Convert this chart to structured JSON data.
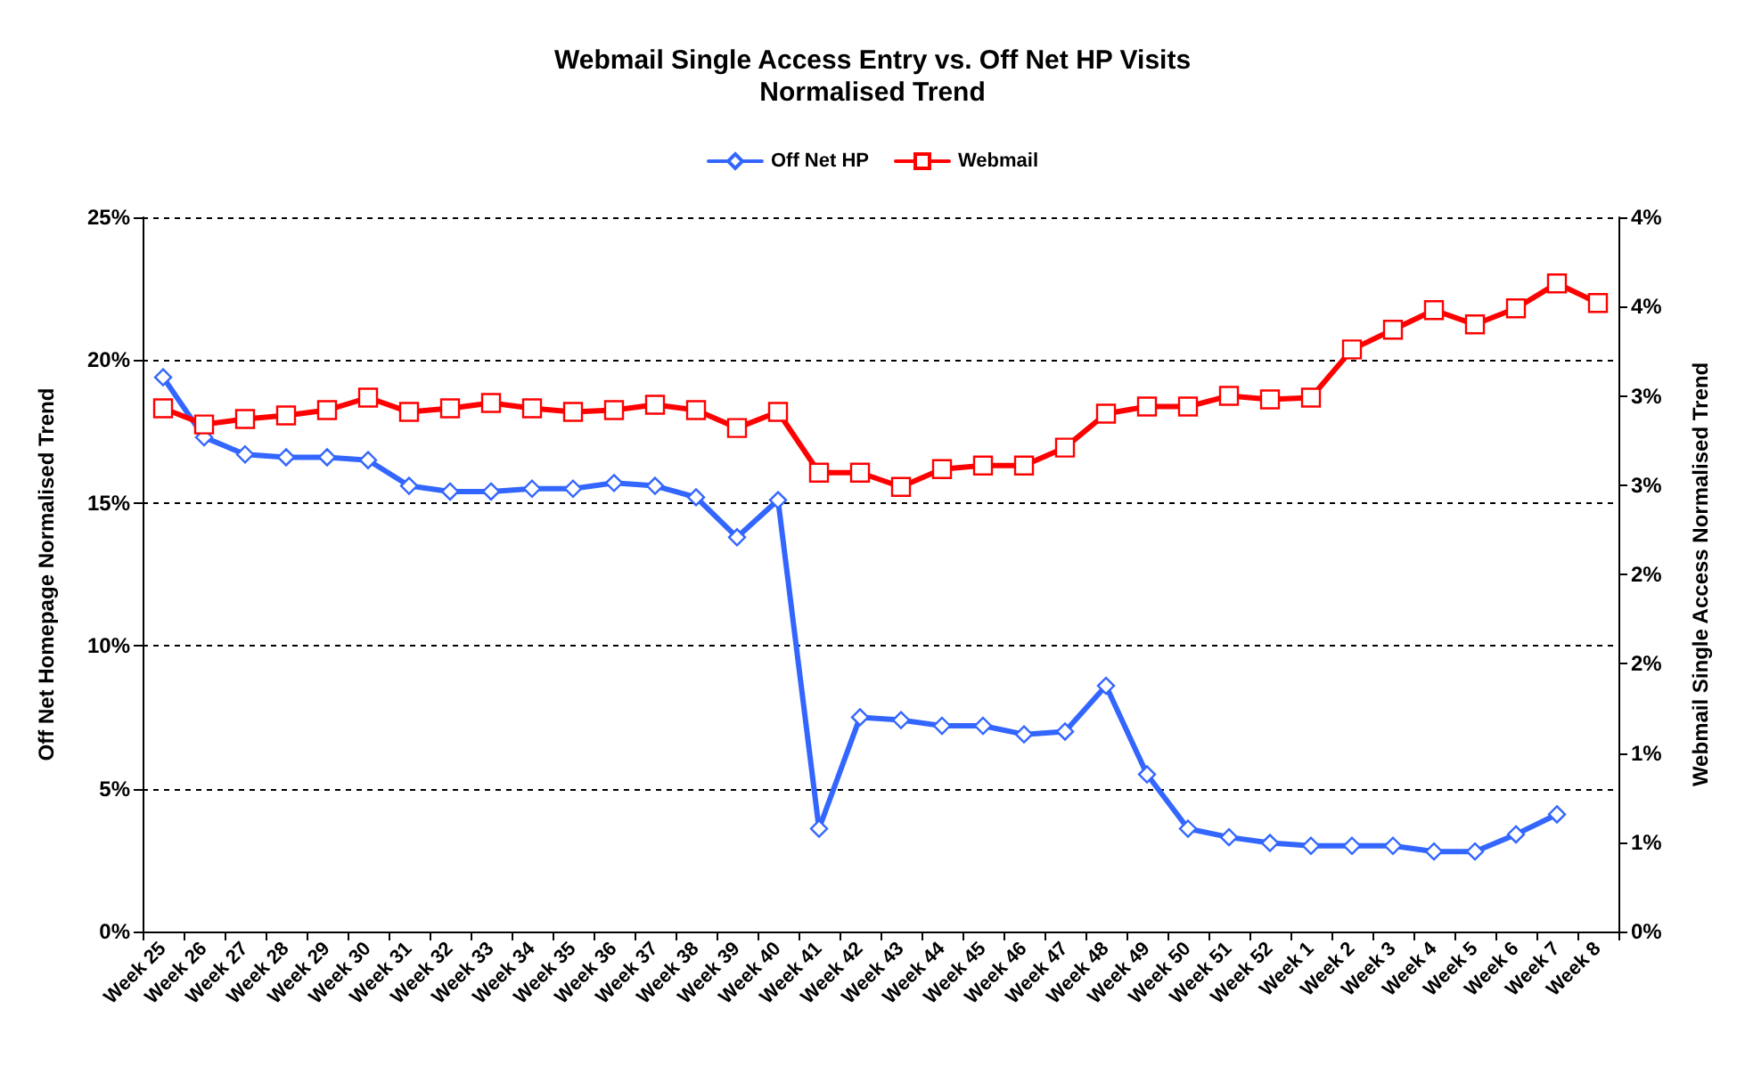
{
  "chart_data": {
    "type": "line",
    "title": "Webmail Single Access Entry vs. Off Net HP Visits\nNormalised Trend",
    "ylabel": "Off Net Homepage Normalised Trend",
    "y2label": "Webmail Single Access Normalised Trend",
    "categories": [
      "Week 25",
      "Week 26",
      "Week 27",
      "Week 28",
      "Week 29",
      "Week 30",
      "Week 31",
      "Week 32",
      "Week 33",
      "Week 34",
      "Week 35",
      "Week 36",
      "Week 37",
      "Week 38",
      "Week 39",
      "Week 40",
      "Week 41",
      "Week 42",
      "Week 43",
      "Week 44",
      "Week 45",
      "Week 46",
      "Week 47",
      "Week 48",
      "Week 49",
      "Week 50",
      "Week 51",
      "Week 52",
      "Week 1",
      "Week 2",
      "Week 3",
      "Week 4",
      "Week 5",
      "Week 6",
      "Week 7",
      "Week 8"
    ],
    "series": [
      {
        "name": "Off Net HP",
        "color": "#3366ff",
        "marker": "diamond",
        "values": [
          19.4,
          17.3,
          16.7,
          16.6,
          16.6,
          16.5,
          15.6,
          15.4,
          15.4,
          15.5,
          15.5,
          15.7,
          15.6,
          15.2,
          13.8,
          15.1,
          3.6,
          7.5,
          7.4,
          7.2,
          7.2,
          6.9,
          7.0,
          8.6,
          5.5,
          3.6,
          3.3,
          3.1,
          3.0,
          3.0,
          3.0,
          2.8,
          2.8,
          3.4,
          4.1,
          null
        ]
      },
      {
        "name": "Webmail",
        "color": "#ff0000",
        "marker": "square",
        "axis": "y2",
        "values": [
          2.93,
          2.84,
          2.87,
          2.89,
          2.92,
          2.99,
          2.91,
          2.93,
          2.96,
          2.93,
          2.91,
          2.92,
          2.95,
          2.92,
          2.82,
          2.91,
          2.57,
          2.57,
          2.49,
          2.59,
          2.61,
          2.61,
          2.71,
          2.9,
          2.94,
          2.94,
          3.0,
          2.98,
          2.99,
          3.26,
          3.37,
          3.48,
          3.4,
          3.49,
          3.63,
          3.52
        ]
      }
    ],
    "ylim": [
      0,
      25
    ],
    "yticks": [
      {
        "value": 0,
        "label": "0%"
      },
      {
        "value": 5,
        "label": "5%"
      },
      {
        "value": 10,
        "label": "10%"
      },
      {
        "value": 15,
        "label": "15%"
      },
      {
        "value": 20,
        "label": "20%"
      },
      {
        "value": 25,
        "label": "25%"
      }
    ],
    "y2lim": [
      0,
      4
    ],
    "y2ticks": [
      {
        "value": 0,
        "label": "0%"
      },
      {
        "value": 0.5,
        "label": "1%"
      },
      {
        "value": 1,
        "label": "1%"
      },
      {
        "value": 1.5,
        "label": "2%"
      },
      {
        "value": 2,
        "label": "2%"
      },
      {
        "value": 2.5,
        "label": "3%"
      },
      {
        "value": 3,
        "label": "3%"
      },
      {
        "value": 3.5,
        "label": "4%"
      },
      {
        "value": 4,
        "label": "4%"
      }
    ],
    "grid": "y",
    "legend": "top"
  }
}
